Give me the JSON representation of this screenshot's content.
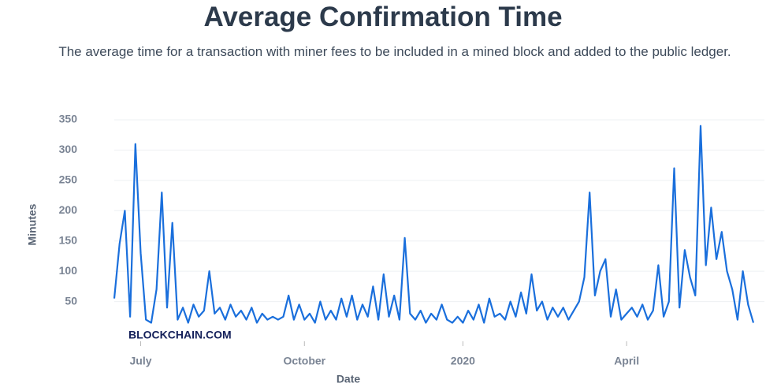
{
  "chart_data": {
    "type": "line",
    "title": "Average Confirmation Time",
    "subtitle": "The average time for a transaction with miner fees to be included in a mined block and added to the public ledger.",
    "x_label": "Date",
    "y_label": "Minutes",
    "watermark": "BLOCKCHAIN.COM",
    "categories": [
      null,
      null,
      null,
      null,
      null,
      "July",
      null,
      null,
      null,
      null,
      null,
      null,
      null,
      null,
      null,
      null,
      null,
      null,
      null,
      null,
      null,
      null,
      null,
      null,
      null,
      null,
      null,
      null,
      null,
      null,
      null,
      null,
      null,
      null,
      null,
      null,
      "October",
      null,
      null,
      null,
      null,
      null,
      null,
      null,
      null,
      null,
      null,
      null,
      null,
      null,
      null,
      null,
      null,
      null,
      null,
      null,
      null,
      null,
      null,
      null,
      null,
      null,
      null,
      null,
      null,
      null,
      "2020",
      null,
      null,
      null,
      null,
      null,
      null,
      null,
      null,
      null,
      null,
      null,
      null,
      null,
      null,
      null,
      null,
      null,
      null,
      null,
      null,
      null,
      null,
      null,
      null,
      null,
      null,
      null,
      null,
      null,
      null,
      "April",
      null,
      null,
      null,
      null,
      null,
      null,
      null,
      null,
      null,
      null,
      null,
      null,
      null,
      null,
      null,
      null,
      null,
      null,
      null,
      null,
      null,
      null,
      null,
      null
    ],
    "series": [
      {
        "name": "Average Confirmation Time",
        "color": "#1a6fdc",
        "values": [
          55,
          145,
          200,
          25,
          310,
          130,
          20,
          15,
          70,
          230,
          40,
          180,
          20,
          40,
          15,
          45,
          25,
          35,
          100,
          30,
          40,
          20,
          45,
          25,
          35,
          20,
          40,
          15,
          30,
          20,
          25,
          20,
          25,
          60,
          20,
          45,
          20,
          30,
          15,
          50,
          20,
          35,
          20,
          55,
          25,
          60,
          20,
          45,
          25,
          75,
          20,
          95,
          25,
          60,
          20,
          155,
          30,
          20,
          35,
          15,
          30,
          20,
          45,
          20,
          15,
          25,
          15,
          35,
          20,
          45,
          15,
          55,
          25,
          30,
          20,
          50,
          25,
          65,
          30,
          95,
          35,
          50,
          20,
          40,
          25,
          40,
          20,
          35,
          50,
          90,
          230,
          60,
          100,
          120,
          25,
          70,
          20,
          30,
          40,
          25,
          45,
          20,
          35,
          110,
          25,
          50,
          270,
          40,
          135,
          90,
          60,
          340,
          110,
          205,
          120,
          165,
          100,
          70,
          20,
          100,
          45,
          15
        ]
      }
    ],
    "ylim": [
      0,
      350
    ],
    "yticks": [
      50,
      100,
      150,
      200,
      250,
      300,
      350
    ],
    "grid": true
  }
}
